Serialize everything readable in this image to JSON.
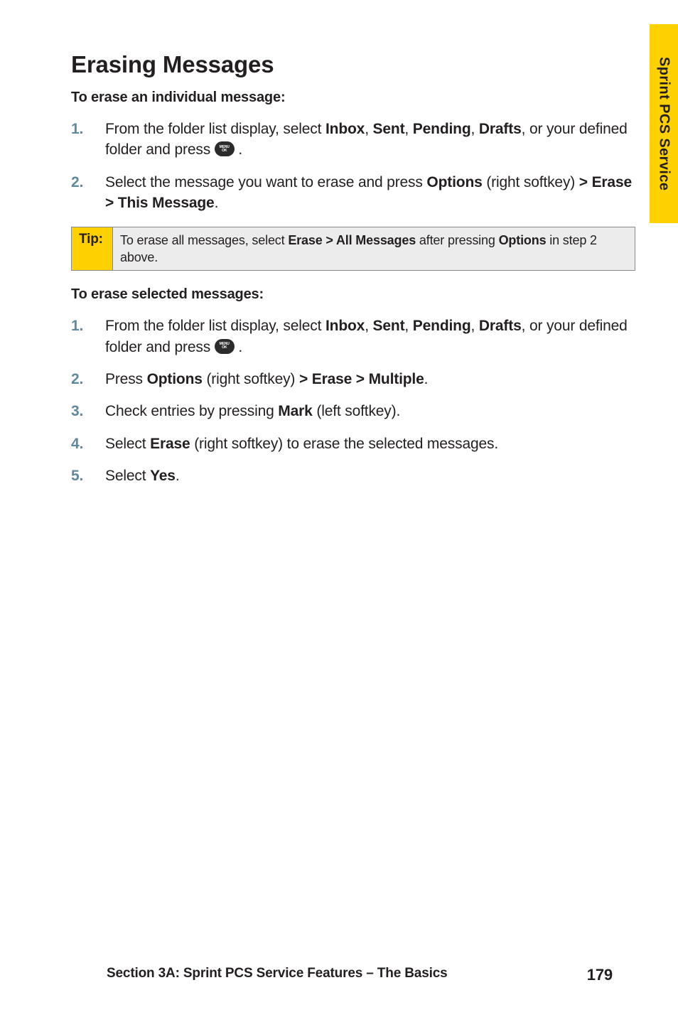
{
  "sidetab_label": "Sprint PCS Service",
  "h1": "Erasing Messages",
  "section1": {
    "lead": "To erase an individual message:",
    "step1_a": "From the folder list display, select ",
    "step1_b1": "Inbox",
    "step1_c1": ", ",
    "step1_b2": "Sent",
    "step1_c2": ", ",
    "step1_b3": "Pending",
    "step1_c3": ", ",
    "step1_b4": "Drafts",
    "step1_d": ", or your defined folder and press  ",
    "step1_e": " .",
    "step2_a": "Select the message you want to erase and press ",
    "step2_b": "Options",
    "step2_c": " (right softkey) ",
    "step2_d": "> Erase > This Message",
    "step2_e": "."
  },
  "tip": {
    "label": "Tip:",
    "a": "To erase all messages, select ",
    "b": "Erase > All Messages",
    "c": " after pressing ",
    "d": "Options",
    "e": " in step 2 above."
  },
  "section2": {
    "lead": "To erase selected messages:",
    "s1a": "From the folder list display, select ",
    "s1b1": "Inbox",
    "s1c1": ", ",
    "s1b2": "Sent",
    "s1c2": ", ",
    "s1b3": "Pending",
    "s1c3": ", ",
    "s1b4": "Drafts",
    "s1d": ", or your defined folder and press ",
    "s1e": " .",
    "s2a": "Press ",
    "s2b": "Options",
    "s2c": " (right softkey) ",
    "s2d": "> Erase > Multiple",
    "s2e": ".",
    "s3a": "Check entries by pressing ",
    "s3b": "Mark",
    "s3c": " (left softkey).",
    "s4a": "Select ",
    "s4b": "Erase",
    "s4c": " (right softkey) to erase the selected messages.",
    "s5a": "Select ",
    "s5b": "Yes",
    "s5c": "."
  },
  "footer": {
    "section": "Section 3A: Sprint PCS Service Features – The Basics",
    "page": "179"
  }
}
